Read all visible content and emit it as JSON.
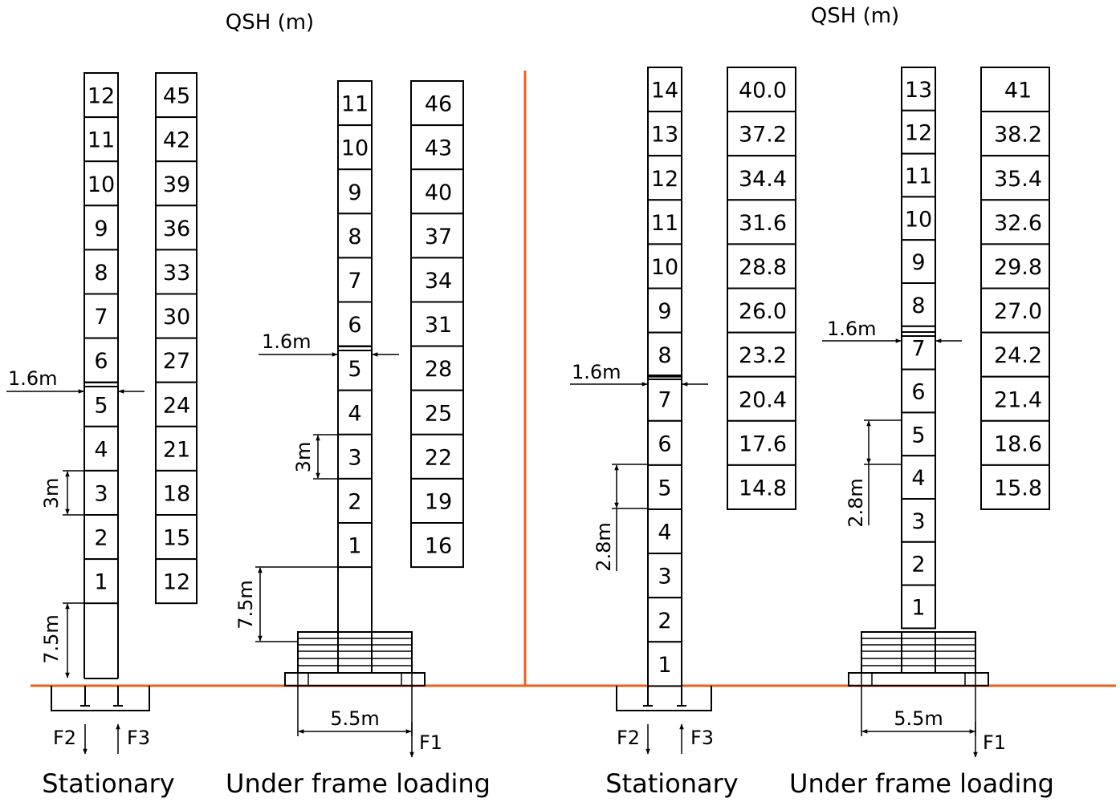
{
  "panels": [
    {
      "heading": "QSH (m)",
      "configs": [
        {
          "label": "Stationary",
          "segments": [
            "12",
            "11",
            "10",
            "9",
            "8",
            "7",
            "6",
            "5",
            "4",
            "3",
            "2",
            "1"
          ],
          "heights": [
            "45",
            "42",
            "39",
            "36",
            "33",
            "30",
            "27",
            "24",
            "21",
            "18",
            "15",
            "12"
          ],
          "dim_tie": "1.6m",
          "dim_segment": "3m",
          "dim_base": "7.5m",
          "forces": [
            "F2",
            "F3"
          ]
        },
        {
          "label": "Under frame loading",
          "segments": [
            "11",
            "10",
            "9",
            "8",
            "7",
            "6",
            "5",
            "4",
            "3",
            "2",
            "1"
          ],
          "heights": [
            "46",
            "43",
            "40",
            "37",
            "34",
            "31",
            "28",
            "25",
            "22",
            "19",
            "16"
          ],
          "dim_tie": "1.6m",
          "dim_segment": "3m",
          "dim_base": "7.5m",
          "dim_width": "5.5m",
          "forces": [
            "F1"
          ]
        }
      ]
    },
    {
      "heading": "QSH (m)",
      "configs": [
        {
          "label": "Stationary",
          "segments": [
            "14",
            "13",
            "12",
            "11",
            "10",
            "9",
            "8",
            "7",
            "6",
            "5",
            "4",
            "3",
            "2",
            "1"
          ],
          "heights": [
            "40.0",
            "37.2",
            "34.4",
            "31.6",
            "28.8",
            "26.0",
            "23.2",
            "20.4",
            "17.6",
            "14.8"
          ],
          "dim_tie": "1.6m",
          "dim_segment": "2.8m",
          "forces": [
            "F2",
            "F3"
          ]
        },
        {
          "label": "Under frame loading",
          "segments": [
            "13",
            "12",
            "11",
            "10",
            "9",
            "8",
            "7",
            "6",
            "5",
            "4",
            "3",
            "2",
            "1"
          ],
          "heights": [
            "41",
            "38.2",
            "35.4",
            "32.6",
            "29.8",
            "27.0",
            "24.2",
            "21.4",
            "18.6",
            "15.8"
          ],
          "dim_tie": "1.6m",
          "dim_segment": "2.8m",
          "dim_width": "5.5m",
          "forces": [
            "F1"
          ]
        }
      ]
    }
  ]
}
